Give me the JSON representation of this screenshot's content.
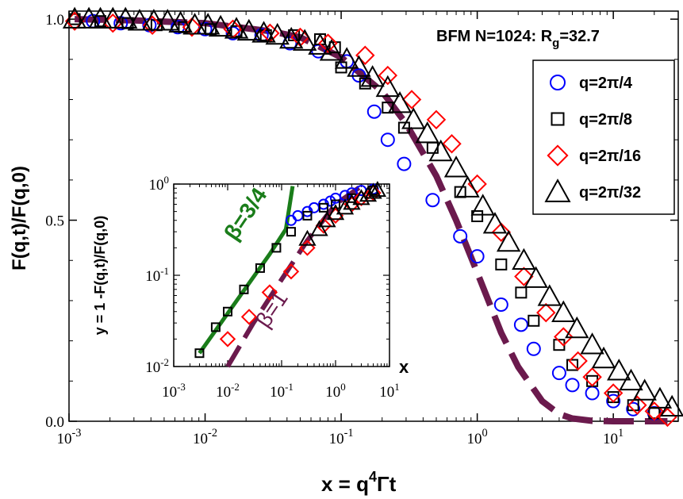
{
  "chart_data": [
    {
      "type": "scatter",
      "role": "main",
      "title": "BFM N=1024: R",
      "title_sub": "g",
      "title_tail": "=32.7",
      "xlabel": "x = q",
      "xlabel_sup": "4",
      "xlabel_tail": "Γt",
      "ylabel": "F(q,t)/F(q,0)",
      "xscale": "log",
      "xlim": [
        0.001,
        30
      ],
      "ylim": [
        0,
        1.02
      ],
      "x_ticks": [
        {
          "v": 0.001,
          "base": "10",
          "exp": "-3"
        },
        {
          "v": 0.01,
          "base": "10",
          "exp": "-2"
        },
        {
          "v": 0.1,
          "base": "10",
          "exp": "-1"
        },
        {
          "v": 1,
          "base": "10",
          "exp": "0"
        },
        {
          "v": 10,
          "base": "10",
          "exp": "1"
        }
      ],
      "y_ticks": [
        {
          "v": 0,
          "label": "0.0"
        },
        {
          "v": 0.5,
          "label": "0.5"
        },
        {
          "v": 1,
          "label": "1.0"
        }
      ],
      "legend_position": "top-right",
      "series": [
        {
          "name": "q=2π/4",
          "marker": "circle",
          "color": "#0000ff",
          "points": [
            [
              0.0015,
              0.995
            ],
            [
              0.0024,
              0.99
            ],
            [
              0.0039,
              0.985
            ],
            [
              0.0063,
              0.98
            ],
            [
              0.01,
              0.975
            ],
            [
              0.016,
              0.965
            ],
            [
              0.026,
              0.96
            ],
            [
              0.042,
              0.94
            ],
            [
              0.068,
              0.92
            ],
            [
              0.11,
              0.895
            ],
            [
              0.135,
              0.86
            ],
            [
              0.175,
              0.77
            ],
            [
              0.22,
              0.7
            ],
            [
              0.29,
              0.64
            ],
            [
              0.47,
              0.55
            ],
            [
              0.75,
              0.46
            ],
            [
              1.0,
              0.41
            ],
            [
              1.5,
              0.29
            ],
            [
              2.1,
              0.24
            ],
            [
              2.6,
              0.18
            ],
            [
              4.0,
              0.12
            ],
            [
              5.0,
              0.09
            ],
            [
              7.0,
              0.07
            ],
            [
              10,
              0.05
            ],
            [
              14,
              0.03
            ],
            [
              20,
              0.02
            ]
          ]
        },
        {
          "name": "q=2π/8",
          "marker": "square",
          "color": "#000000",
          "points": [
            [
              0.0011,
              1.0
            ],
            [
              0.0017,
              0.995
            ],
            [
              0.0027,
              0.99
            ],
            [
              0.0044,
              0.985
            ],
            [
              0.007,
              0.98
            ],
            [
              0.011,
              0.975
            ],
            [
              0.017,
              0.97
            ],
            [
              0.028,
              0.96
            ],
            [
              0.045,
              0.96
            ],
            [
              0.07,
              0.95
            ],
            [
              0.09,
              0.93
            ],
            [
              0.1,
              0.88
            ],
            [
              0.15,
              0.84
            ],
            [
              0.22,
              0.78
            ],
            [
              0.29,
              0.73
            ],
            [
              0.47,
              0.68
            ],
            [
              0.75,
              0.57
            ],
            [
              1.0,
              0.51
            ],
            [
              1.5,
              0.39
            ],
            [
              2.1,
              0.32
            ],
            [
              2.6,
              0.25
            ],
            [
              4.0,
              0.19
            ],
            [
              5.0,
              0.14
            ],
            [
              7.0,
              0.1
            ],
            [
              10,
              0.06
            ],
            [
              14,
              0.04
            ],
            [
              20,
              0.02
            ]
          ]
        },
        {
          "name": "q=2π/16",
          "marker": "diamond",
          "color": "#ff0000",
          "points": [
            [
              0.0011,
              0.995
            ],
            [
              0.0021,
              0.99
            ],
            [
              0.0041,
              0.985
            ],
            [
              0.008,
              0.98
            ],
            [
              0.016,
              0.975
            ],
            [
              0.03,
              0.965
            ],
            [
              0.05,
              0.955
            ],
            [
              0.08,
              0.94
            ],
            [
              0.15,
              0.91
            ],
            [
              0.22,
              0.86
            ],
            [
              0.33,
              0.8
            ],
            [
              0.5,
              0.75
            ],
            [
              0.65,
              0.69
            ],
            [
              1.0,
              0.59
            ],
            [
              1.5,
              0.47
            ],
            [
              2.2,
              0.36
            ],
            [
              3.2,
              0.27
            ],
            [
              4.3,
              0.21
            ],
            [
              5.5,
              0.15
            ],
            [
              7.0,
              0.11
            ],
            [
              10,
              0.07
            ],
            [
              15,
              0.04
            ],
            [
              20,
              0.025
            ],
            [
              25,
              0.01
            ]
          ]
        },
        {
          "name": "q=2π/32",
          "marker": "triangle",
          "color": "#000000",
          "points": [
            [
              0.0011,
              1.0
            ],
            [
              0.0014,
              1.0
            ],
            [
              0.0017,
              1.0
            ],
            [
              0.0021,
              1.0
            ],
            [
              0.0026,
              1.0
            ],
            [
              0.0033,
              0.995
            ],
            [
              0.0042,
              0.995
            ],
            [
              0.0053,
              0.995
            ],
            [
              0.0066,
              0.99
            ],
            [
              0.0084,
              0.985
            ],
            [
              0.0105,
              0.985
            ],
            [
              0.013,
              0.98
            ],
            [
              0.017,
              0.975
            ],
            [
              0.021,
              0.97
            ],
            [
              0.027,
              0.965
            ],
            [
              0.034,
              0.96
            ],
            [
              0.043,
              0.95
            ],
            [
              0.054,
              0.945
            ],
            [
              0.07,
              0.935
            ],
            [
              0.085,
              0.92
            ],
            [
              0.11,
              0.9
            ],
            [
              0.135,
              0.88
            ],
            [
              0.17,
              0.855
            ],
            [
              0.22,
              0.83
            ],
            [
              0.27,
              0.79
            ],
            [
              0.34,
              0.75
            ],
            [
              0.43,
              0.715
            ],
            [
              0.54,
              0.67
            ],
            [
              0.7,
              0.63
            ],
            [
              0.85,
              0.58
            ],
            [
              1.1,
              0.535
            ],
            [
              1.35,
              0.49
            ],
            [
              1.7,
              0.445
            ],
            [
              2.2,
              0.4
            ],
            [
              2.7,
              0.355
            ],
            [
              3.4,
              0.31
            ],
            [
              4.3,
              0.27
            ],
            [
              5.4,
              0.23
            ],
            [
              7.0,
              0.19
            ],
            [
              8.5,
              0.155
            ],
            [
              11,
              0.125
            ],
            [
              13.5,
              0.1
            ],
            [
              17,
              0.075
            ],
            [
              22,
              0.055
            ],
            [
              27,
              0.035
            ]
          ]
        }
      ],
      "fit_curves": [
        {
          "label": "β=1",
          "style": "dashed",
          "color": "#6b1a4d",
          "points": [
            [
              0.0011,
              1.0
            ],
            [
              0.003,
              0.997
            ],
            [
              0.01,
              0.99
            ],
            [
              0.03,
              0.97
            ],
            [
              0.05,
              0.955
            ],
            [
              0.1,
              0.905
            ],
            [
              0.2,
              0.82
            ],
            [
              0.3,
              0.74
            ],
            [
              0.5,
              0.61
            ],
            [
              0.7,
              0.5
            ],
            [
              1.0,
              0.37
            ],
            [
              1.5,
              0.22
            ],
            [
              2.0,
              0.135
            ],
            [
              3.0,
              0.05
            ],
            [
              4.0,
              0.018
            ],
            [
              5.0,
              0.007
            ],
            [
              7.0,
              0.0009
            ],
            [
              10,
              5e-05
            ],
            [
              20,
              0.0
            ],
            [
              25,
              0.0
            ]
          ]
        }
      ]
    },
    {
      "type": "scatter",
      "role": "inset",
      "xlabel": "x",
      "ylabel": "y = 1 -F(q,t)/F(q,0)",
      "xscale": "log",
      "yscale": "log",
      "xlim": [
        0.001,
        10
      ],
      "ylim": [
        0.01,
        1
      ],
      "x_ticks": [
        {
          "v": 0.001,
          "base": "10",
          "exp": "-3"
        },
        {
          "v": 0.01,
          "base": "10",
          "exp": "-2"
        },
        {
          "v": 0.1,
          "base": "10",
          "exp": "-1"
        },
        {
          "v": 1,
          "base": "10",
          "exp": "0"
        },
        {
          "v": 10,
          "base": "10",
          "exp": "1"
        }
      ],
      "y_ticks": [
        {
          "v": 0.01,
          "base": "10",
          "exp": "-2"
        },
        {
          "v": 0.1,
          "base": "10",
          "exp": "-1"
        },
        {
          "v": 1,
          "base": "10",
          "exp": "0"
        }
      ],
      "series": [
        {
          "name": "q=2π/4",
          "marker": "circle",
          "color": "#0000ff",
          "points": [
            [
              0.15,
              0.4
            ],
            [
              0.2,
              0.45
            ],
            [
              0.3,
              0.5
            ],
            [
              0.4,
              0.55
            ],
            [
              0.6,
              0.6
            ],
            [
              0.8,
              0.65
            ],
            [
              1.0,
              0.7
            ],
            [
              1.5,
              0.75
            ],
            [
              2.0,
              0.8
            ],
            [
              3.0,
              0.85
            ],
            [
              5.0,
              0.88
            ]
          ]
        },
        {
          "name": "q=2π/8",
          "marker": "square",
          "color": "#000000",
          "points": [
            [
              0.003,
              0.014
            ],
            [
              0.006,
              0.027
            ],
            [
              0.01,
              0.04
            ],
            [
              0.02,
              0.07
            ],
            [
              0.04,
              0.12
            ],
            [
              0.08,
              0.2
            ],
            [
              0.15,
              0.3
            ],
            [
              0.3,
              0.45
            ],
            [
              0.6,
              0.55
            ],
            [
              1.0,
              0.6
            ],
            [
              2.0,
              0.7
            ],
            [
              5.0,
              0.85
            ]
          ]
        },
        {
          "name": "q=2π/16",
          "marker": "diamond",
          "color": "#ff0000",
          "points": [
            [
              0.01,
              0.02
            ],
            [
              0.025,
              0.035
            ],
            [
              0.06,
              0.065
            ],
            [
              0.15,
              0.11
            ],
            [
              0.3,
              0.2
            ],
            [
              0.6,
              0.35
            ],
            [
              1.0,
              0.45
            ],
            [
              2.0,
              0.6
            ],
            [
              3.0,
              0.7
            ],
            [
              5.0,
              0.8
            ]
          ]
        },
        {
          "name": "q=2π/32",
          "marker": "triangle",
          "color": "#000000",
          "points": [
            [
              0.3,
              0.25
            ],
            [
              0.5,
              0.32
            ],
            [
              0.7,
              0.4
            ],
            [
              1.0,
              0.48
            ],
            [
              1.5,
              0.55
            ],
            [
              2.0,
              0.62
            ],
            [
              3.0,
              0.7
            ],
            [
              4.0,
              0.76
            ],
            [
              5.0,
              0.82
            ],
            [
              6.0,
              0.86
            ]
          ]
        }
      ],
      "fit_lines": [
        {
          "label": "β=3/4",
          "style": "solid",
          "color": "#1a7d1a",
          "points": [
            [
              0.003,
              0.014
            ],
            [
              0.06,
              0.17
            ],
            [
              0.12,
              0.32
            ],
            [
              0.16,
              0.95
            ]
          ]
        },
        {
          "label": "β=1",
          "style": "dashed",
          "color": "#6b1a4d",
          "points": [
            [
              0.01,
              0.01
            ],
            [
              0.03,
              0.03
            ],
            [
              0.1,
              0.09
            ],
            [
              0.3,
              0.24
            ],
            [
              1.0,
              0.6
            ],
            [
              3.0,
              0.95
            ]
          ]
        }
      ]
    }
  ]
}
